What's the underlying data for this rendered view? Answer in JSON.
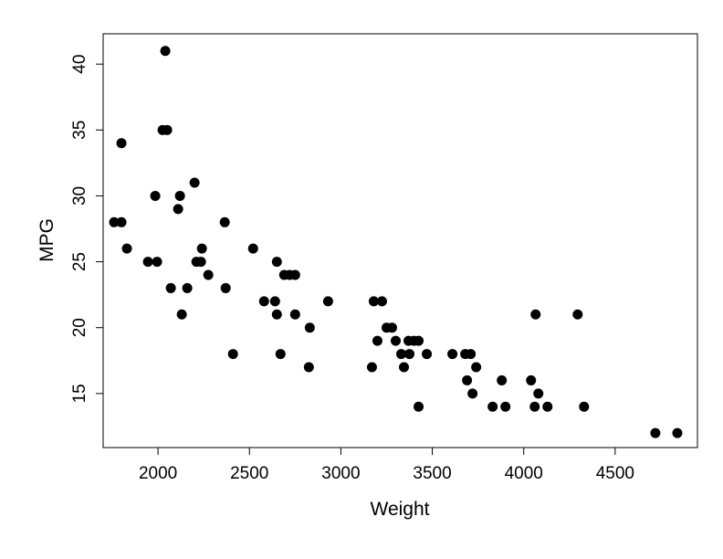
{
  "chart_data": {
    "type": "scatter",
    "xlabel": "Weight",
    "ylabel": "MPG",
    "xlim": [
      1700,
      4950
    ],
    "ylim": [
      10.9,
      42.3
    ],
    "xticks": [
      2000,
      2500,
      3000,
      3500,
      4000,
      4500
    ],
    "yticks": [
      15,
      20,
      25,
      30,
      35,
      40
    ],
    "grid": false,
    "marker_color": "#000000",
    "points": [
      [
        2040,
        41
      ],
      [
        2025,
        35
      ],
      [
        2050,
        35
      ],
      [
        1800,
        34
      ],
      [
        2200,
        31
      ],
      [
        1985,
        30
      ],
      [
        2120,
        30
      ],
      [
        2110,
        29
      ],
      [
        1760,
        28
      ],
      [
        1800,
        28
      ],
      [
        2365,
        28
      ],
      [
        1830,
        26
      ],
      [
        2240,
        26
      ],
      [
        2520,
        26
      ],
      [
        1945,
        25
      ],
      [
        1995,
        25
      ],
      [
        2210,
        25
      ],
      [
        2235,
        25
      ],
      [
        2650,
        25
      ],
      [
        2275,
        24
      ],
      [
        2690,
        24
      ],
      [
        2720,
        24
      ],
      [
        2750,
        24
      ],
      [
        2070,
        23
      ],
      [
        2160,
        23
      ],
      [
        2370,
        23
      ],
      [
        2580,
        22
      ],
      [
        2640,
        22
      ],
      [
        2930,
        22
      ],
      [
        3180,
        22
      ],
      [
        3225,
        22
      ],
      [
        2130,
        21
      ],
      [
        2650,
        21
      ],
      [
        2750,
        21
      ],
      [
        4065,
        21
      ],
      [
        4295,
        21
      ],
      [
        2830,
        20
      ],
      [
        3250,
        20
      ],
      [
        3280,
        20
      ],
      [
        3200,
        19
      ],
      [
        3300,
        19
      ],
      [
        3370,
        19
      ],
      [
        3400,
        19
      ],
      [
        3425,
        19
      ],
      [
        2410,
        18
      ],
      [
        2670,
        18
      ],
      [
        3330,
        18
      ],
      [
        3375,
        18
      ],
      [
        3470,
        18
      ],
      [
        3610,
        18
      ],
      [
        3680,
        18
      ],
      [
        3710,
        18
      ],
      [
        2825,
        17
      ],
      [
        3170,
        17
      ],
      [
        3345,
        17
      ],
      [
        3740,
        17
      ],
      [
        3690,
        16
      ],
      [
        3880,
        16
      ],
      [
        4040,
        16
      ],
      [
        3720,
        15
      ],
      [
        4080,
        15
      ],
      [
        3425,
        14
      ],
      [
        3830,
        14
      ],
      [
        3900,
        14
      ],
      [
        4060,
        14
      ],
      [
        4130,
        14
      ],
      [
        4330,
        14
      ],
      [
        4720,
        12
      ],
      [
        4840,
        12
      ]
    ]
  }
}
